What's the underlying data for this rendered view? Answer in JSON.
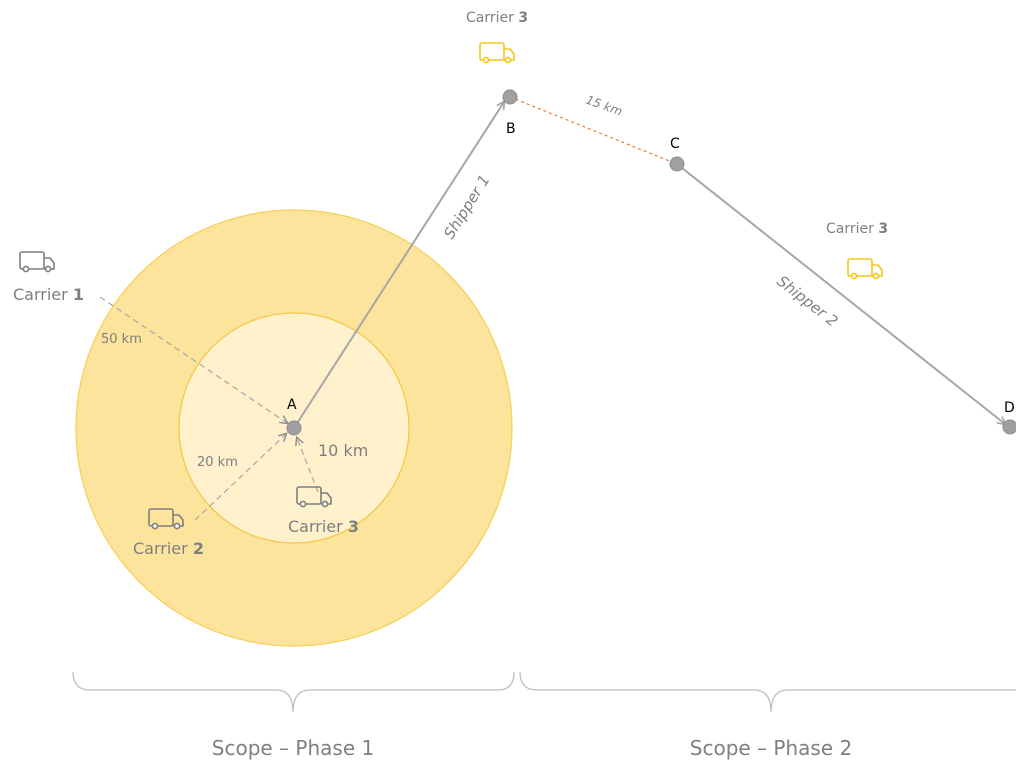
{
  "colors": {
    "outer_zone": "#fde49c",
    "outer_zone_stroke": "#f7cf55",
    "inner_zone": "#fff1cc",
    "inner_zone_stroke": "#f3c63f",
    "route": "#a6a6a6",
    "node": "#a0a0a0",
    "dashed_link": "#ed7d31",
    "truck_gray": "#7f7f7f",
    "truck_yellow": "#f5c518",
    "label_gray": "#7f7f7f"
  },
  "points": {
    "a": "A",
    "b": "B",
    "c": "C",
    "d": "D"
  },
  "distances": {
    "outer_radius": "50 km",
    "mid_radius": "20 km",
    "inner_radius": "10 km",
    "b_to_c": "15 km"
  },
  "routes": {
    "shipper1": "Shipper 1",
    "shipper2": "Shipper 2"
  },
  "carriers": {
    "prefix": "Carrier",
    "c1": "1",
    "c2": "2",
    "c3": "3"
  },
  "scopes": {
    "phase1": "Scope – Phase 1",
    "phase2": "Scope – Phase 2"
  }
}
